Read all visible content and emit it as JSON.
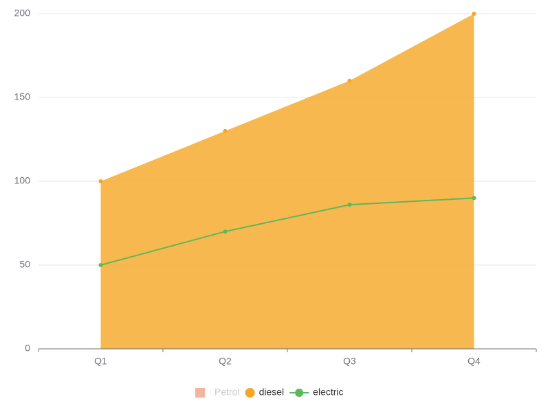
{
  "chart_data": {
    "type": "area-line",
    "categories": [
      "Q1",
      "Q2",
      "Q3",
      "Q4"
    ],
    "series": [
      {
        "name": "Petrol",
        "color": "#f4b4a0",
        "visible": false
      },
      {
        "name": "diesel",
        "color": "#f5a623",
        "kind": "area",
        "values": [
          100,
          130,
          160,
          200
        ]
      },
      {
        "name": "electric",
        "color": "#5cb85c",
        "kind": "line",
        "values": [
          50,
          70,
          86,
          90
        ]
      }
    ],
    "ylim": [
      0,
      200
    ],
    "yticks": [
      0,
      50,
      100,
      150,
      200
    ],
    "grid": true,
    "legend": "bottom"
  }
}
